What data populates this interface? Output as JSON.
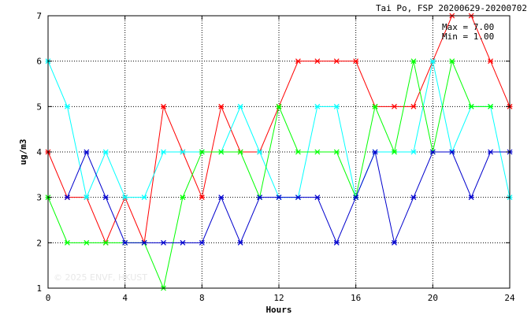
{
  "chart_data": {
    "type": "line",
    "title": "Tai Po, FSP 20200629-20200702",
    "xlabel": "Hours",
    "ylabel": "ug/m3",
    "xlim": [
      0,
      24
    ],
    "ylim": [
      1,
      7
    ],
    "xticks": [
      0,
      4,
      8,
      12,
      16,
      20,
      24
    ],
    "yticks": [
      1,
      2,
      3,
      4,
      5,
      6,
      7
    ],
    "grid": true,
    "annotations": [
      "Max = 7.00",
      "Min = 1.00"
    ],
    "watermark": "© 2025  ENVF, HKUST",
    "x": [
      0,
      1,
      2,
      3,
      4,
      5,
      6,
      7,
      8,
      9,
      10,
      11,
      12,
      13,
      14,
      15,
      16,
      17,
      18,
      19,
      20,
      21,
      22,
      23,
      24
    ],
    "series": [
      {
        "color": "#ff0000",
        "values": [
          4,
          3,
          3,
          2,
          3,
          2,
          5,
          4,
          3,
          5,
          4,
          4,
          5,
          6,
          6,
          6,
          6,
          5,
          5,
          5,
          6,
          7,
          7,
          6,
          5
        ]
      },
      {
        "color": "#00ffff",
        "values": [
          6,
          5,
          3,
          4,
          3,
          3,
          4,
          4,
          4,
          4,
          5,
          4,
          3,
          3,
          5,
          5,
          3,
          4,
          4,
          4,
          6,
          4,
          5,
          5,
          3
        ]
      },
      {
        "color": "#00ff00",
        "values": [
          3,
          2,
          2,
          2,
          2,
          2,
          1,
          3,
          4,
          4,
          4,
          3,
          5,
          4,
          4,
          4,
          3,
          5,
          4,
          6,
          4,
          6,
          5,
          5,
          null
        ]
      },
      {
        "color": "#0000cd",
        "values": [
          null,
          3,
          4,
          3,
          2,
          2,
          2,
          2,
          2,
          3,
          2,
          3,
          3,
          3,
          3,
          2,
          3,
          4,
          2,
          3,
          4,
          4,
          3,
          4,
          4
        ]
      }
    ]
  }
}
